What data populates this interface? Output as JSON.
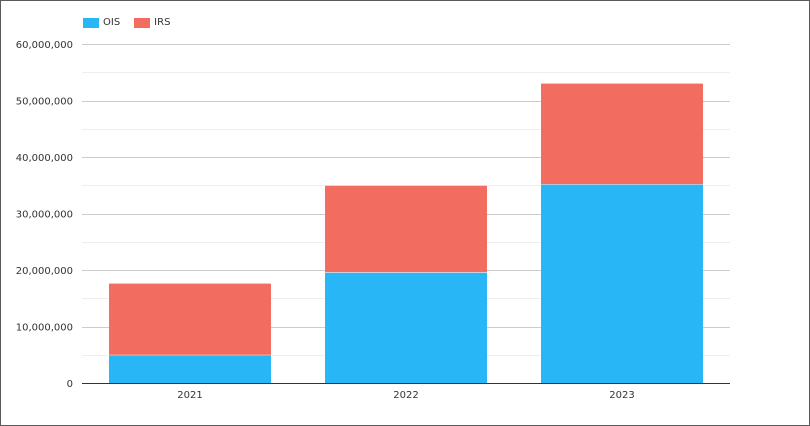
{
  "chart_data": {
    "type": "bar",
    "stacked": true,
    "categories": [
      "2021",
      "2022",
      "2023"
    ],
    "series": [
      {
        "name": "OIS",
        "color": "#29b6f6",
        "values": [
          5000000,
          19600000,
          35200000
        ]
      },
      {
        "name": "IRS",
        "color": "#f26d5f",
        "values": [
          12600000,
          15300000,
          17800000
        ]
      }
    ],
    "title": "",
    "xlabel": "",
    "ylabel": "",
    "ylim": [
      0,
      60000000
    ],
    "yticks": [
      0,
      10000000,
      20000000,
      30000000,
      40000000,
      50000000,
      60000000
    ],
    "ytick_labels": [
      "0",
      "10,000,000",
      "20,000,000",
      "30,000,000",
      "40,000,000",
      "50,000,000",
      "60,000,000"
    ],
    "grid": true,
    "legend_position": "top-left"
  }
}
